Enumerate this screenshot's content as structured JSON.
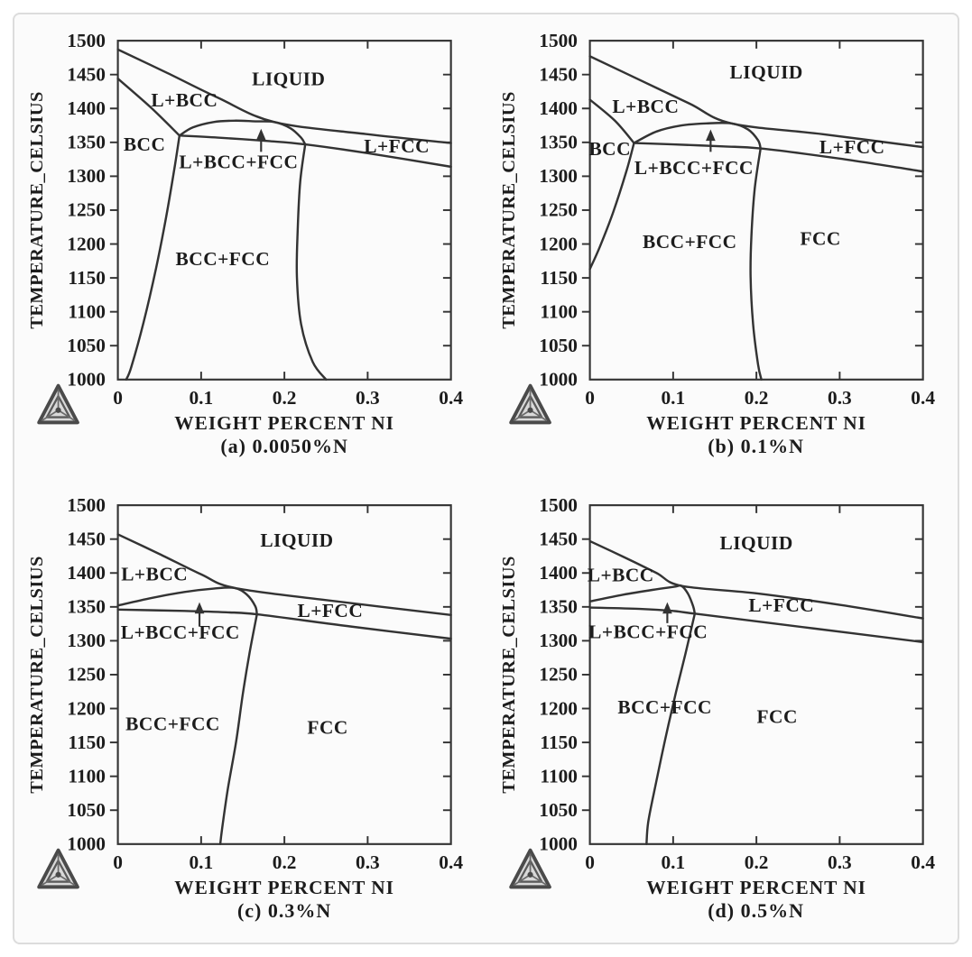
{
  "page": {
    "background": "#ffffff",
    "card_background": "#fbfbfb",
    "card_border": "#dcdcdc",
    "line_color": "#333333",
    "text_color": "#1c1c1c",
    "logo_icon": "thermo-calc-triangle-logo"
  },
  "axes": {
    "x_label": "WEIGHT PERCENT NI",
    "y_label": "TEMPERATURE_CELSIUS",
    "x_range": [
      0,
      0.4
    ],
    "y_range": [
      1000,
      1500
    ],
    "x_ticks": [
      0,
      0.1,
      0.2,
      0.3,
      0.4
    ],
    "x_tick_labels": [
      "0",
      "0.1",
      "0.2",
      "0.3",
      "0.4"
    ],
    "y_ticks": [
      1000,
      1050,
      1100,
      1150,
      1200,
      1250,
      1300,
      1350,
      1400,
      1450,
      1500
    ],
    "y_tick_labels": [
      "1000",
      "1050",
      "1100",
      "1150",
      "1200",
      "1250",
      "1300",
      "1350",
      "1400",
      "1450",
      "1500"
    ],
    "grid": false
  },
  "chart_data": [
    {
      "id": "a",
      "type": "line",
      "title": "Fe-Ni phase diagram at 0.0050%N",
      "caption": "(a) 0.0050%N",
      "xlabel": "WEIGHT PERCENT NI",
      "ylabel": "TEMPERATURE_CELSIUS",
      "xlim": [
        0,
        0.4
      ],
      "ylim": [
        1000,
        1500
      ],
      "arrow": {
        "x": 0.172,
        "y_from": 1336,
        "y_to": 1370
      },
      "region_labels": [
        {
          "text": "LIQUID",
          "x": 0.205,
          "y": 1443
        },
        {
          "text": "L+BCC",
          "x": 0.08,
          "y": 1412
        },
        {
          "text": "BCC",
          "x": 0.032,
          "y": 1347
        },
        {
          "text": "L+BCC+FCC",
          "x": 0.145,
          "y": 1321
        },
        {
          "text": "L+FCC",
          "x": 0.335,
          "y": 1344
        },
        {
          "text": "BCC+FCC",
          "x": 0.126,
          "y": 1178
        }
      ],
      "boundaries": [
        {
          "name": "liquidus",
          "points": [
            [
              0,
              1487
            ],
            [
              0.06,
              1452
            ],
            [
              0.12,
              1416
            ],
            [
              0.188,
              1380
            ],
            [
              0.3,
              1362
            ],
            [
              0.4,
              1349
            ]
          ]
        },
        {
          "name": "bcc-solidus",
          "points": [
            [
              0,
              1444
            ],
            [
              0.04,
              1401
            ],
            [
              0.074,
              1360
            ]
          ]
        },
        {
          "name": "three-phase-top",
          "points": [
            [
              0.074,
              1360
            ],
            [
              0.09,
              1372
            ],
            [
              0.115,
              1380
            ],
            [
              0.14,
              1382
            ],
            [
              0.165,
              1381
            ],
            [
              0.188,
              1380
            ],
            [
              0.207,
              1371
            ],
            [
              0.22,
              1357
            ],
            [
              0.225,
              1347
            ]
          ]
        },
        {
          "name": "solvus-flat",
          "points": [
            [
              0.074,
              1360
            ],
            [
              0.12,
              1357
            ],
            [
              0.18,
              1352
            ],
            [
              0.225,
              1347
            ],
            [
              0.3,
              1334
            ],
            [
              0.4,
              1314
            ]
          ]
        },
        {
          "name": "bcc-left-solvus",
          "points": [
            [
              0.074,
              1360
            ],
            [
              0.068,
              1312
            ],
            [
              0.058,
              1240
            ],
            [
              0.046,
              1165
            ],
            [
              0.031,
              1085
            ],
            [
              0.016,
              1018
            ],
            [
              0.01,
              1000
            ]
          ]
        },
        {
          "name": "fcc-left-solvus",
          "points": [
            [
              0.225,
              1347
            ],
            [
              0.219,
              1292
            ],
            [
              0.216,
              1222
            ],
            [
              0.215,
              1152
            ],
            [
              0.22,
              1082
            ],
            [
              0.234,
              1026
            ],
            [
              0.25,
              1000
            ]
          ]
        }
      ]
    },
    {
      "id": "b",
      "type": "line",
      "title": "Fe-Ni phase diagram at 0.1%N",
      "caption": "(b) 0.1%N",
      "xlabel": "WEIGHT PERCENT NI",
      "ylabel": "TEMPERATURE_CELSIUS",
      "xlim": [
        0,
        0.4
      ],
      "ylim": [
        1000,
        1500
      ],
      "arrow": {
        "x": 0.145,
        "y_from": 1336,
        "y_to": 1369
      },
      "region_labels": [
        {
          "text": "LIQUID",
          "x": 0.212,
          "y": 1453
        },
        {
          "text": "L+BCC",
          "x": 0.067,
          "y": 1403
        },
        {
          "text": "BCC",
          "x": 0.024,
          "y": 1340
        },
        {
          "text": "L+BCC+FCC",
          "x": 0.125,
          "y": 1312
        },
        {
          "text": "L+FCC",
          "x": 0.315,
          "y": 1343
        },
        {
          "text": "BCC+FCC",
          "x": 0.12,
          "y": 1203
        },
        {
          "text": "FCC",
          "x": 0.277,
          "y": 1208
        }
      ],
      "boundaries": [
        {
          "name": "liquidus",
          "points": [
            [
              0,
              1477
            ],
            [
              0.06,
              1442
            ],
            [
              0.12,
              1407
            ],
            [
              0.17,
              1378
            ],
            [
              0.28,
              1362
            ],
            [
              0.4,
              1343
            ]
          ]
        },
        {
          "name": "bcc-solidus",
          "points": [
            [
              0,
              1413
            ],
            [
              0.03,
              1382
            ],
            [
              0.053,
              1349
            ]
          ]
        },
        {
          "name": "three-phase-top",
          "points": [
            [
              0.053,
              1349
            ],
            [
              0.08,
              1366
            ],
            [
              0.11,
              1375
            ],
            [
              0.14,
              1378
            ],
            [
              0.17,
              1378
            ],
            [
              0.19,
              1369
            ],
            [
              0.202,
              1353
            ],
            [
              0.205,
              1341
            ]
          ]
        },
        {
          "name": "solvus-flat",
          "points": [
            [
              0.053,
              1349
            ],
            [
              0.1,
              1347
            ],
            [
              0.16,
              1344
            ],
            [
              0.205,
              1341
            ],
            [
              0.3,
              1326
            ],
            [
              0.4,
              1307
            ]
          ]
        },
        {
          "name": "bcc-left-solvus",
          "points": [
            [
              0.053,
              1349
            ],
            [
              0.044,
              1308
            ],
            [
              0.028,
              1247
            ],
            [
              0.012,
              1196
            ],
            [
              0,
              1163
            ]
          ]
        },
        {
          "name": "fcc-left-solvus",
          "points": [
            [
              0.205,
              1341
            ],
            [
              0.198,
              1282
            ],
            [
              0.194,
              1212
            ],
            [
              0.193,
              1152
            ],
            [
              0.196,
              1082
            ],
            [
              0.202,
              1022
            ],
            [
              0.206,
              1000
            ]
          ]
        }
      ]
    },
    {
      "id": "c",
      "type": "line",
      "title": "Fe-Ni phase diagram at 0.3%N",
      "caption": "(c) 0.3%N",
      "xlabel": "WEIGHT PERCENT NI",
      "ylabel": "TEMPERATURE_CELSIUS",
      "xlim": [
        0,
        0.4
      ],
      "ylim": [
        1000,
        1500
      ],
      "arrow": {
        "x": 0.098,
        "y_from": 1321,
        "y_to": 1357
      },
      "region_labels": [
        {
          "text": "LIQUID",
          "x": 0.215,
          "y": 1448
        },
        {
          "text": "L+BCC",
          "x": 0.044,
          "y": 1398
        },
        {
          "text": "L+BCC+FCC",
          "x": 0.075,
          "y": 1312
        },
        {
          "text": "L+FCC",
          "x": 0.255,
          "y": 1344
        },
        {
          "text": "BCC+FCC",
          "x": 0.066,
          "y": 1177
        },
        {
          "text": "FCC",
          "x": 0.252,
          "y": 1172
        }
      ],
      "boundaries": [
        {
          "name": "liquidus",
          "points": [
            [
              0,
              1457
            ],
            [
              0.05,
              1428
            ],
            [
              0.1,
              1398
            ],
            [
              0.14,
              1378
            ],
            [
              0.25,
              1360
            ],
            [
              0.4,
              1338
            ]
          ]
        },
        {
          "name": "three-phase-top",
          "points": [
            [
              0,
              1352
            ],
            [
              0.04,
              1363
            ],
            [
              0.08,
              1372
            ],
            [
              0.115,
              1377
            ],
            [
              0.14,
              1378
            ],
            [
              0.155,
              1368
            ],
            [
              0.165,
              1351
            ],
            [
              0.167,
              1339
            ]
          ]
        },
        {
          "name": "solvus-flat",
          "points": [
            [
              0,
              1346
            ],
            [
              0.08,
              1344
            ],
            [
              0.13,
              1342
            ],
            [
              0.167,
              1339
            ],
            [
              0.28,
              1321
            ],
            [
              0.4,
              1303
            ]
          ]
        },
        {
          "name": "fcc-left-solvus",
          "points": [
            [
              0.167,
              1339
            ],
            [
              0.158,
              1281
            ],
            [
              0.15,
              1221
            ],
            [
              0.142,
              1151
            ],
            [
              0.132,
              1081
            ],
            [
              0.125,
              1021
            ],
            [
              0.123,
              1000
            ]
          ]
        }
      ]
    },
    {
      "id": "d",
      "type": "line",
      "title": "Fe-Ni phase diagram at 0.5%N",
      "caption": "(d) 0.5%N",
      "xlabel": "WEIGHT PERCENT NI",
      "ylabel": "TEMPERATURE_CELSIUS",
      "xlim": [
        0,
        0.4
      ],
      "ylim": [
        1000,
        1500
      ],
      "arrow": {
        "x": 0.093,
        "y_from": 1326,
        "y_to": 1357
      },
      "region_labels": [
        {
          "text": "LIQUID",
          "x": 0.2,
          "y": 1444
        },
        {
          "text": "L+BCC",
          "x": 0.037,
          "y": 1397
        },
        {
          "text": "L+BCC+FCC",
          "x": 0.07,
          "y": 1313
        },
        {
          "text": "L+FCC",
          "x": 0.23,
          "y": 1352
        },
        {
          "text": "BCC+FCC",
          "x": 0.09,
          "y": 1202
        },
        {
          "text": "FCC",
          "x": 0.225,
          "y": 1188
        }
      ],
      "boundaries": [
        {
          "name": "liquidus",
          "points": [
            [
              0,
              1447
            ],
            [
              0.04,
              1424
            ],
            [
              0.08,
              1400
            ],
            [
              0.11,
              1381
            ],
            [
              0.2,
              1370
            ],
            [
              0.3,
              1353
            ],
            [
              0.4,
              1333
            ]
          ]
        },
        {
          "name": "three-phase-top",
          "points": [
            [
              0,
              1358
            ],
            [
              0.04,
              1368
            ],
            [
              0.08,
              1376
            ],
            [
              0.103,
              1380
            ],
            [
              0.11,
              1381
            ],
            [
              0.118,
              1369
            ],
            [
              0.124,
              1351
            ],
            [
              0.126,
              1340
            ]
          ]
        },
        {
          "name": "solvus-flat",
          "points": [
            [
              0,
              1349
            ],
            [
              0.06,
              1347
            ],
            [
              0.1,
              1344
            ],
            [
              0.126,
              1340
            ],
            [
              0.27,
              1318
            ],
            [
              0.4,
              1298
            ]
          ]
        },
        {
          "name": "fcc-left-solvus",
          "points": [
            [
              0.126,
              1340
            ],
            [
              0.115,
              1282
            ],
            [
              0.103,
              1222
            ],
            [
              0.09,
              1152
            ],
            [
              0.078,
              1082
            ],
            [
              0.07,
              1032
            ],
            [
              0.068,
              1000
            ]
          ]
        }
      ]
    }
  ]
}
